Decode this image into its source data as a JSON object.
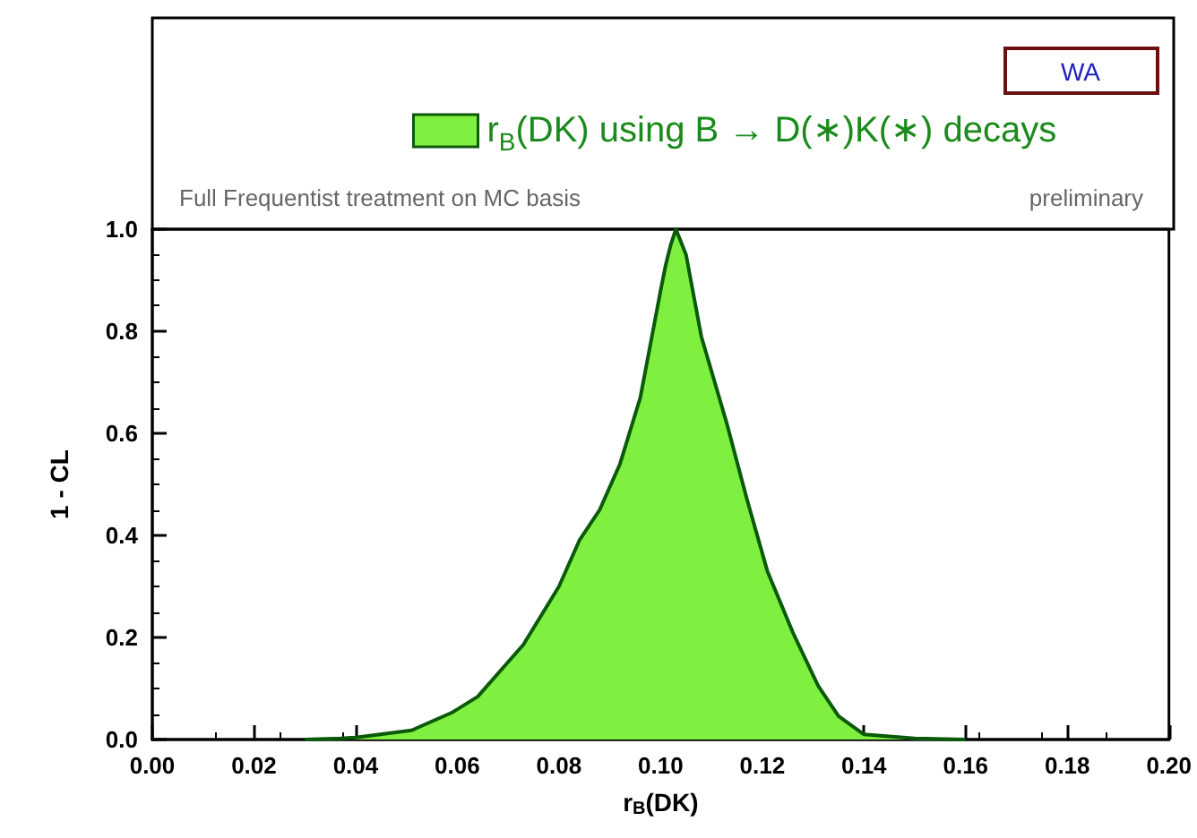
{
  "chart_data": {
    "type": "area",
    "xlabel": "r$_{B}$(DK)",
    "ylabel": "1 - CL",
    "annotations": [
      "WA",
      "Full Frequentist treatment on MC basis",
      "preliminary"
    ],
    "series": [
      {
        "name": "r$_{B}$(DK) using B → D(∗)K(∗) decays",
        "color": "#80f040",
        "x": [
          0.03,
          0.037,
          0.04,
          0.051,
          0.059,
          0.064,
          0.073,
          0.08,
          0.084,
          0.088,
          0.092,
          0.096,
          0.1,
          0.101,
          0.102,
          0.103,
          0.105,
          0.108,
          0.113,
          0.117,
          0.121,
          0.126,
          0.131,
          0.135,
          0.14,
          0.15,
          0.16
        ],
        "values": [
          0,
          0.002,
          0.004,
          0.018,
          0.053,
          0.084,
          0.186,
          0.3,
          0.39,
          0.45,
          0.54,
          0.67,
          0.88,
          0.93,
          0.97,
          1.0,
          0.95,
          0.79,
          0.62,
          0.47,
          0.33,
          0.21,
          0.105,
          0.046,
          0.01,
          0.002,
          0
        ]
      }
    ],
    "xlim": [
      0,
      0.2
    ],
    "xticks": [
      {
        "value": 0,
        "label": "0.00"
      },
      {
        "value": 0.02,
        "label": "0.02"
      },
      {
        "value": 0.04,
        "label": "0.04"
      },
      {
        "value": 0.06,
        "label": "0.06"
      },
      {
        "value": 0.08,
        "label": "0.08"
      },
      {
        "value": 0.1,
        "label": "0.10"
      },
      {
        "value": 0.12,
        "label": "0.12"
      },
      {
        "value": 0.14,
        "label": "0.14"
      },
      {
        "value": 0.16,
        "label": "0.16"
      },
      {
        "value": 0.18,
        "label": "0.18"
      },
      {
        "value": 0.2,
        "label": "0.20"
      }
    ],
    "ylim": [
      0,
      1
    ],
    "yticks": [
      {
        "value": 0,
        "label": "0.0"
      },
      {
        "value": 0.2,
        "label": "0.2"
      },
      {
        "value": 0.4,
        "label": "0.4"
      },
      {
        "value": 0.6,
        "label": "0.6"
      },
      {
        "value": 0.8,
        "label": "0.8"
      },
      {
        "value": 1,
        "label": "1.0"
      }
    ],
    "grid": false,
    "legend": "top"
  }
}
